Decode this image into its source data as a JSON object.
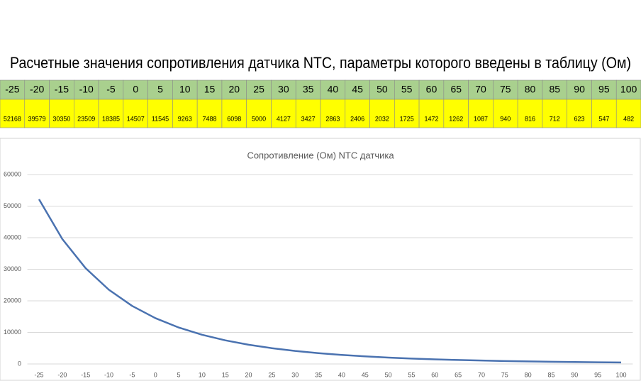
{
  "heading": "Расчетные значения сопротивления датчика NTC, параметры которого введены в таблицу (Ом)",
  "chart_data": {
    "type": "line",
    "title": "Сопротивление (Ом) NTC датчика",
    "categories": [
      -25,
      -20,
      -15,
      -10,
      -5,
      0,
      5,
      10,
      15,
      20,
      25,
      30,
      35,
      40,
      45,
      50,
      55,
      60,
      65,
      70,
      75,
      80,
      85,
      90,
      95,
      100
    ],
    "values": [
      52168,
      39579,
      30350,
      23509,
      18385,
      14507,
      11545,
      9263,
      7488,
      6098,
      5000,
      4127,
      3427,
      2863,
      2406,
      2032,
      1725,
      1472,
      1262,
      1087,
      940,
      816,
      712,
      623,
      547,
      482
    ],
    "color": "#4a72b0",
    "ylim": [
      0,
      60000
    ],
    "yticks": [
      0,
      10000,
      20000,
      30000,
      40000,
      50000,
      60000
    ],
    "grid": true
  }
}
